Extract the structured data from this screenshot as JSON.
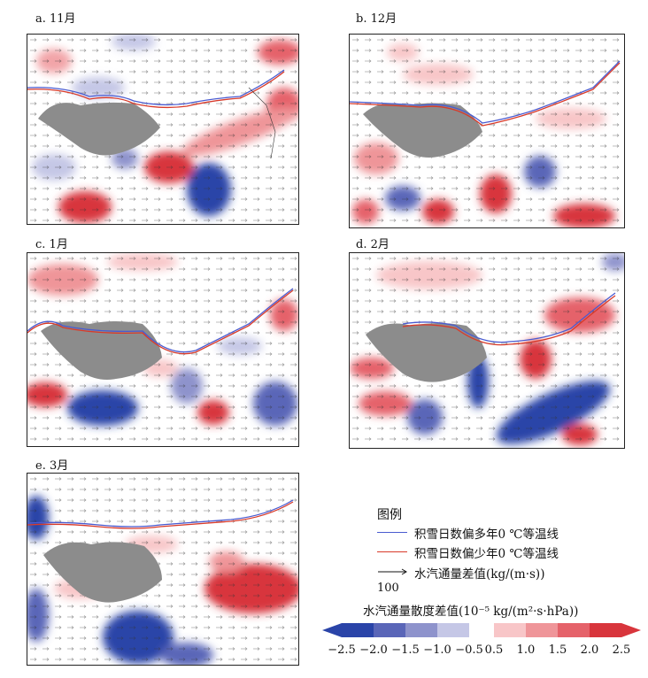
{
  "panels": [
    {
      "id": "a",
      "label": "a. 11月"
    },
    {
      "id": "b",
      "label": "b. 12月"
    },
    {
      "id": "c",
      "label": "c. 1月"
    },
    {
      "id": "d",
      "label": "d. 2月"
    },
    {
      "id": "e",
      "label": "e. 3月"
    }
  ],
  "legend": {
    "title": "图例",
    "items": [
      {
        "label": "积雪日数偏多年0 ℃等温线",
        "color": "#4a5bd0"
      },
      {
        "label": "积雪日数偏少年0 ℃等温线",
        "color": "#d83a2a"
      },
      {
        "label": "水汽通量差值(kg/(m·s))",
        "color": "#111111"
      }
    ],
    "vector_scale": "100"
  },
  "colorbar": {
    "title": "水汽通量散度差值(10⁻⁵ kg/(m²·s·hPa))",
    "ticks": [
      "−2.5",
      "−2.0",
      "−1.5",
      "−1.0",
      "−0.5",
      "0.5",
      "1.0",
      "1.5",
      "2.0",
      "2.5"
    ],
    "colors": [
      "#2a44a8",
      "#5a66b8",
      "#8e93cc",
      "#c5c7e6",
      "#ffffff",
      "#f8c6c8",
      "#ef9599",
      "#e5626a",
      "#d8353c"
    ]
  },
  "colors": {
    "plateau": "#8c8c8c",
    "negative": "#3a4fb0",
    "positive": "#e03a40",
    "isotherm_more": "#4a5bd0",
    "isotherm_less": "#d83a2a"
  }
}
